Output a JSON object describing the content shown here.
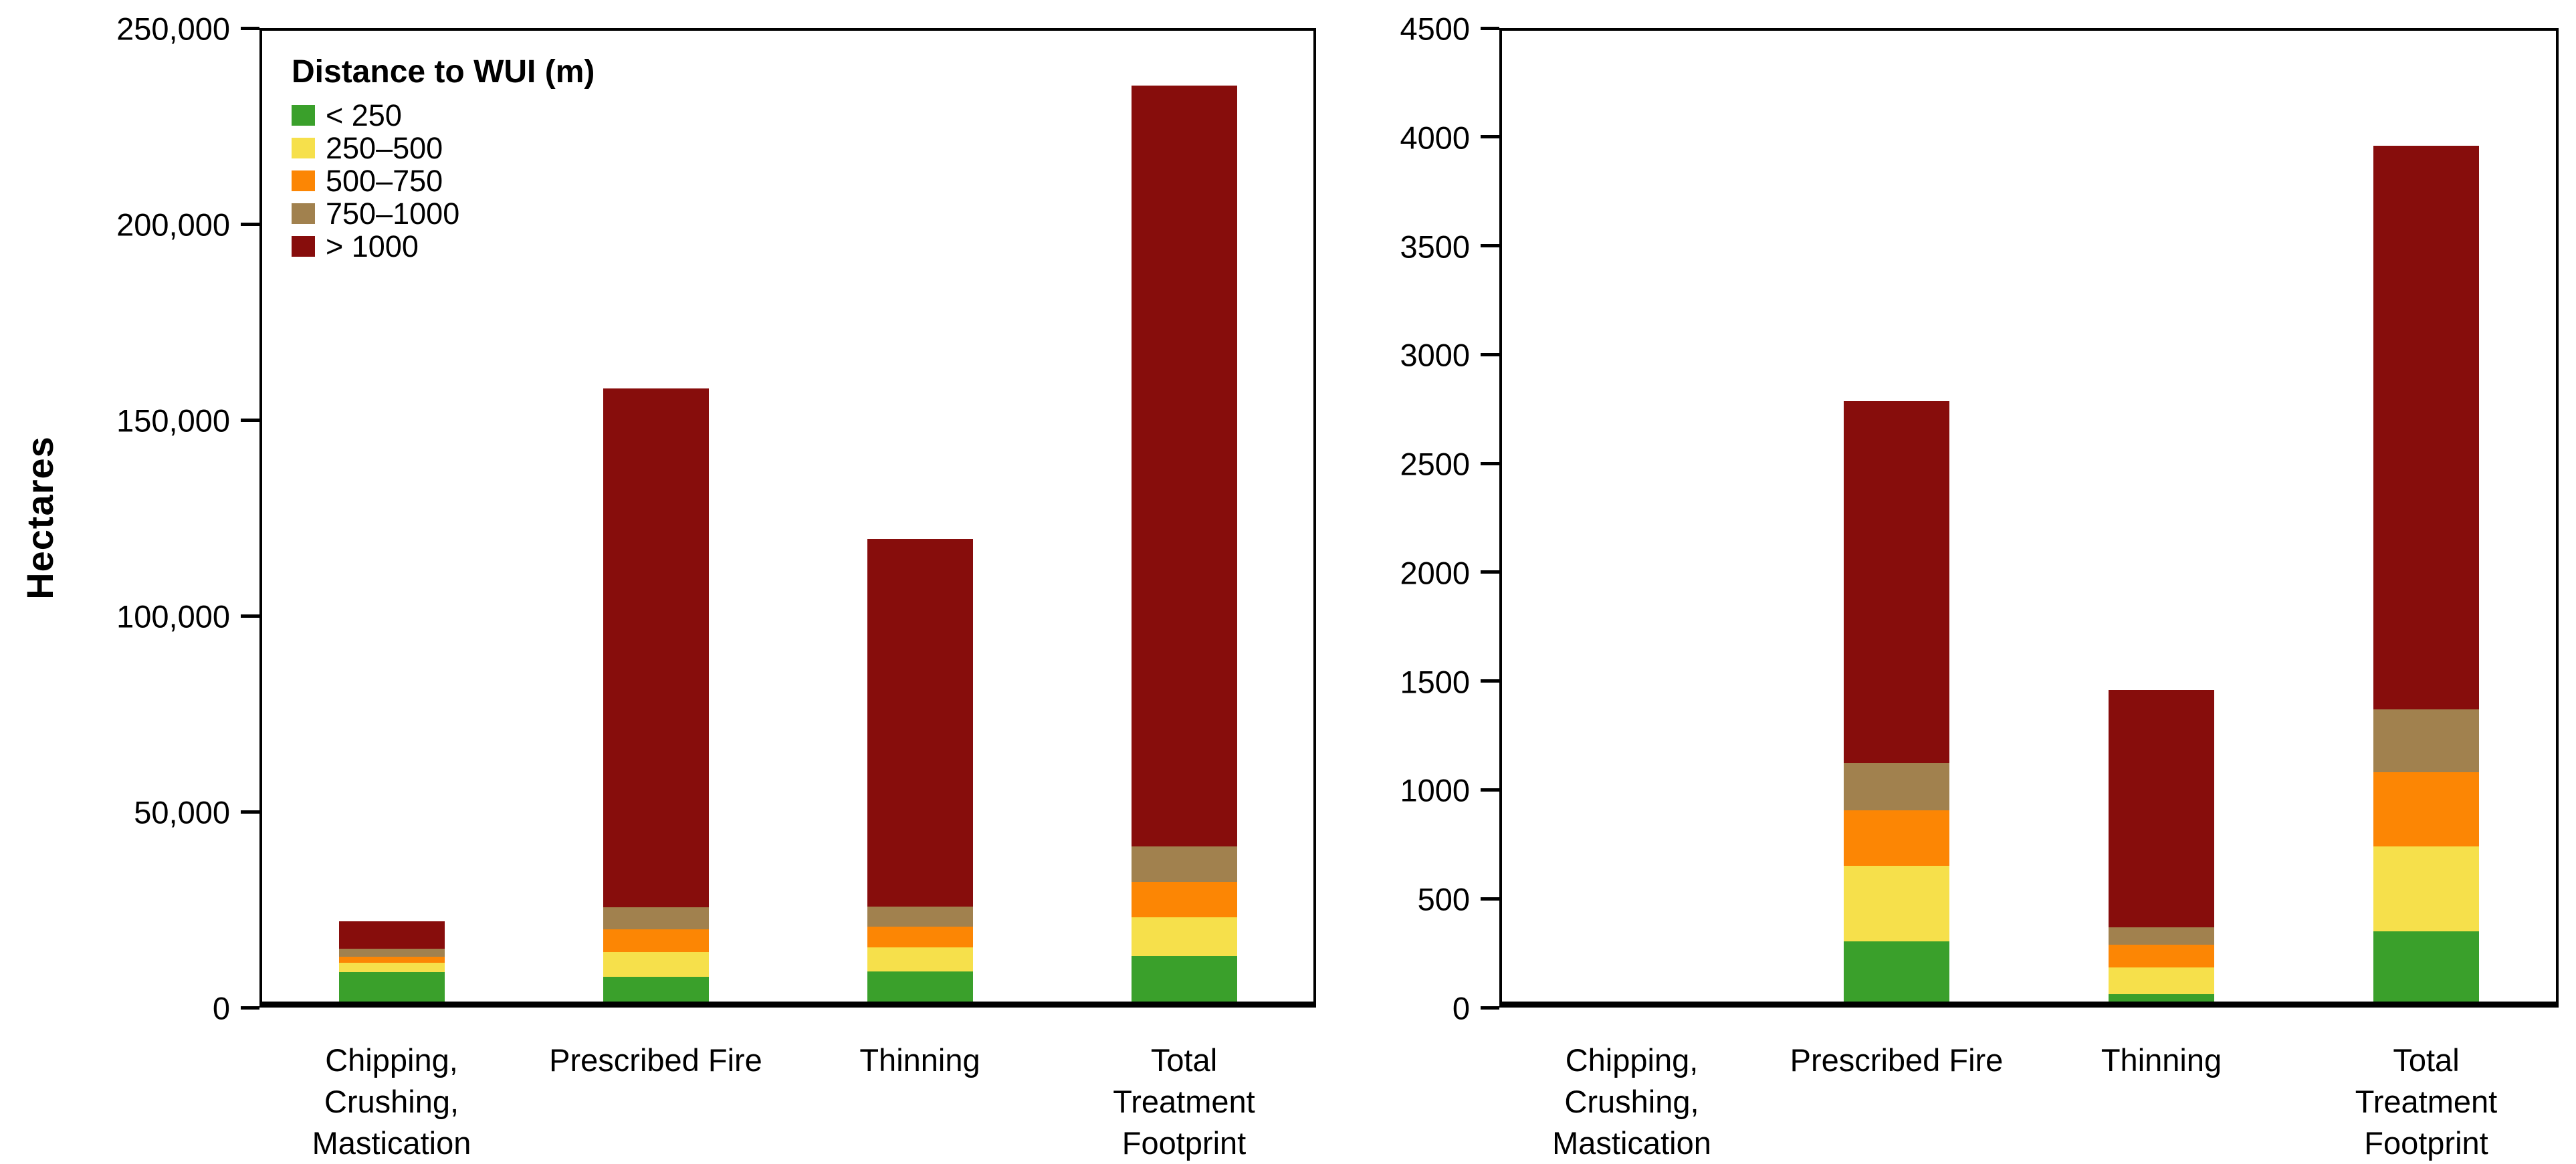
{
  "figure": {
    "background": "#FFFFFF",
    "axis_color": "#000000",
    "ylabel_left": "Hectares"
  },
  "colors": {
    "lt250": "#3AA02B",
    "d250_500": "#F6E04B",
    "d500_750": "#FC8604",
    "d750_1000": "#A1814E",
    "gt1000": "#870D0C"
  },
  "legend": {
    "title": "Distance to WUI (m)",
    "items": [
      {
        "label": "< 250",
        "color": "#3AA02B"
      },
      {
        "label": "250–500",
        "color": "#F6E04B"
      },
      {
        "label": "500–750",
        "color": "#FC8604"
      },
      {
        "label": "750–1000",
        "color": "#A1814E"
      },
      {
        "label": "> 1000",
        "color": "#870D0C"
      }
    ]
  },
  "chart_data": [
    {
      "type": "bar",
      "stacked": true,
      "title": "",
      "xlabel": "",
      "ylabel": "Hectares",
      "grid": false,
      "legend_position": "inside upper-left",
      "categories": [
        "Chipping,\nCrushing,\nMastication",
        "Prescribed Fire",
        "Thinning",
        "Total Treatment\nFootprint"
      ],
      "series": [
        {
          "name": "< 250",
          "color": "#3AA02B",
          "values": [
            9000,
            7800,
            9300,
            13200
          ]
        },
        {
          "name": "250–500",
          "color": "#F6E04B",
          "values": [
            2450,
            6300,
            6000,
            9800
          ]
        },
        {
          "name": "500–750",
          "color": "#FC8604",
          "values": [
            1600,
            5900,
            5300,
            9100
          ]
        },
        {
          "name": "750–1000",
          "color": "#A1814E",
          "values": [
            1900,
            5600,
            5100,
            9000
          ]
        },
        {
          "name": "> 1000",
          "color": "#870D0C",
          "values": [
            7050,
            132400,
            93900,
            194300
          ]
        }
      ],
      "totals": [
        22000,
        158000,
        119600,
        235400
      ],
      "ylim": [
        0,
        250000
      ],
      "ytick_step": 50000,
      "yticklabels": [
        "0",
        "50,000",
        "100,000",
        "150,000",
        "200,000",
        "250,000"
      ]
    },
    {
      "type": "bar",
      "stacked": true,
      "title": "",
      "xlabel": "",
      "ylabel": "",
      "grid": false,
      "legend_position": "none",
      "categories": [
        "Chipping,\nCrushing,\nMastication",
        "Prescribed Fire",
        "Thinning",
        "Total Treatment\nFootprint"
      ],
      "series": [
        {
          "name": "< 250",
          "color": "#3AA02B",
          "values": [
            8,
            305,
            60,
            350
          ]
        },
        {
          "name": "250–500",
          "color": "#F6E04B",
          "values": [
            4,
            345,
            125,
            390
          ]
        },
        {
          "name": "500–750",
          "color": "#FC8604",
          "values": [
            4,
            255,
            105,
            340
          ]
        },
        {
          "name": "750–1000",
          "color": "#A1814E",
          "values": [
            1,
            220,
            80,
            290
          ]
        },
        {
          "name": "> 1000",
          "color": "#870D0C",
          "values": [
            1,
            1660,
            1090,
            2590
          ]
        }
      ],
      "totals": [
        18,
        2785,
        1460,
        3960
      ],
      "ylim": [
        0,
        4500
      ],
      "ytick_step": 500,
      "yticklabels": [
        "0",
        "500",
        "1000",
        "1500",
        "2000",
        "2500",
        "3000",
        "3500",
        "4000",
        "4500"
      ]
    }
  ]
}
